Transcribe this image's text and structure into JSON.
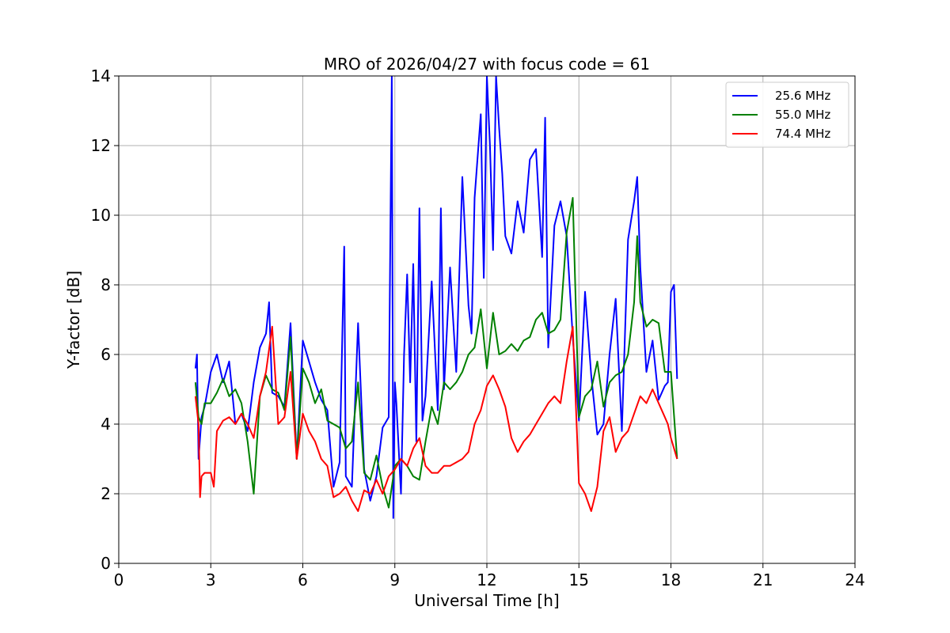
{
  "chart_data": {
    "type": "line",
    "title": "MRO of 2026/04/27 with focus code = 61",
    "xlabel": "Universal Time [h]",
    "ylabel": "Y-factor [dB]",
    "xlim": [
      0,
      24
    ],
    "ylim": [
      0,
      14
    ],
    "xticks": [
      0,
      3,
      6,
      9,
      12,
      15,
      18,
      21,
      24
    ],
    "yticks": [
      0,
      2,
      4,
      6,
      8,
      10,
      12,
      14
    ],
    "grid": true,
    "legend_position": "top-right",
    "series": [
      {
        "name": "25.6 MHz",
        "color": "#0000ff",
        "x": [
          2.5,
          2.55,
          2.6,
          2.7,
          2.8,
          3.0,
          3.2,
          3.4,
          3.6,
          3.8,
          4.0,
          4.2,
          4.4,
          4.6,
          4.8,
          4.9,
          5.0,
          5.2,
          5.4,
          5.6,
          5.8,
          6.0,
          6.2,
          6.4,
          6.6,
          6.8,
          7.0,
          7.2,
          7.35,
          7.4,
          7.6,
          7.8,
          8.0,
          8.2,
          8.4,
          8.6,
          8.8,
          8.9,
          8.95,
          9.0,
          9.05,
          9.2,
          9.3,
          9.4,
          9.5,
          9.6,
          9.7,
          9.8,
          9.9,
          10.0,
          10.2,
          10.4,
          10.5,
          10.6,
          10.8,
          11.0,
          11.2,
          11.4,
          11.5,
          11.6,
          11.8,
          11.9,
          12.0,
          12.1,
          12.2,
          12.3,
          12.4,
          12.5,
          12.6,
          12.8,
          13.0,
          13.2,
          13.4,
          13.6,
          13.8,
          13.9,
          14.0,
          14.2,
          14.4,
          14.6,
          14.8,
          15.0,
          15.2,
          15.4,
          15.6,
          15.8,
          16.0,
          16.2,
          16.4,
          16.6,
          16.8,
          16.9,
          17.0,
          17.2,
          17.4,
          17.6,
          17.8,
          17.9,
          18.0,
          18.1,
          18.2
        ],
        "y": [
          5.6,
          6.0,
          3.0,
          4.2,
          4.5,
          5.5,
          6.0,
          5.2,
          5.8,
          4.0,
          4.3,
          3.8,
          5.2,
          6.2,
          6.6,
          7.5,
          4.9,
          4.8,
          4.5,
          6.9,
          3.0,
          6.4,
          5.8,
          5.2,
          4.7,
          4.4,
          2.2,
          2.9,
          9.1,
          2.5,
          2.2,
          6.9,
          2.7,
          1.8,
          2.5,
          3.9,
          4.2,
          14.0,
          1.3,
          5.2,
          4.6,
          2.0,
          6.0,
          8.3,
          5.2,
          8.6,
          3.5,
          10.2,
          4.1,
          4.8,
          8.1,
          4.4,
          10.2,
          5.0,
          8.5,
          5.5,
          11.1,
          7.4,
          6.6,
          10.5,
          12.9,
          8.2,
          14.0,
          12.0,
          9.0,
          14.0,
          12.5,
          11.2,
          9.4,
          8.9,
          10.4,
          9.5,
          11.6,
          11.9,
          8.8,
          12.8,
          6.2,
          9.7,
          10.4,
          9.4,
          6.5,
          4.1,
          7.8,
          5.4,
          3.7,
          4.0,
          6.0,
          7.6,
          3.8,
          9.3,
          10.4,
          11.1,
          8.5,
          5.5,
          6.4,
          4.7,
          5.1,
          5.2,
          7.8,
          8.0,
          5.3
        ]
      },
      {
        "name": "55.0 MHz",
        "color": "#008000",
        "x": [
          2.5,
          2.6,
          2.7,
          2.8,
          3.0,
          3.2,
          3.4,
          3.6,
          3.8,
          4.0,
          4.2,
          4.4,
          4.6,
          4.8,
          5.0,
          5.2,
          5.4,
          5.6,
          5.8,
          6.0,
          6.2,
          6.4,
          6.6,
          6.8,
          7.0,
          7.2,
          7.4,
          7.6,
          7.8,
          8.0,
          8.2,
          8.4,
          8.6,
          8.8,
          9.0,
          9.2,
          9.4,
          9.6,
          9.8,
          10.0,
          10.2,
          10.4,
          10.6,
          10.8,
          11.0,
          11.2,
          11.4,
          11.6,
          11.8,
          12.0,
          12.2,
          12.4,
          12.6,
          12.8,
          13.0,
          13.2,
          13.4,
          13.6,
          13.8,
          14.0,
          14.2,
          14.4,
          14.6,
          14.8,
          15.0,
          15.2,
          15.4,
          15.6,
          15.8,
          16.0,
          16.2,
          16.4,
          16.6,
          16.8,
          16.9,
          17.0,
          17.2,
          17.4,
          17.6,
          17.8,
          18.0,
          18.2
        ],
        "y": [
          5.2,
          4.2,
          4.0,
          4.6,
          4.6,
          4.9,
          5.3,
          4.8,
          5.0,
          4.6,
          3.5,
          2.0,
          4.8,
          5.4,
          5.0,
          4.9,
          4.4,
          6.5,
          3.0,
          5.6,
          5.2,
          4.6,
          5.0,
          4.1,
          4.0,
          3.9,
          3.3,
          3.5,
          5.2,
          2.6,
          2.4,
          3.1,
          2.2,
          1.6,
          2.8,
          3.0,
          2.8,
          2.5,
          2.4,
          3.5,
          4.5,
          4.0,
          5.2,
          5.0,
          5.2,
          5.5,
          6.0,
          6.2,
          7.3,
          5.6,
          7.2,
          6.0,
          6.1,
          6.3,
          6.1,
          6.4,
          6.5,
          7.0,
          7.2,
          6.6,
          6.7,
          7.0,
          9.5,
          10.5,
          4.2,
          4.8,
          5.0,
          5.8,
          4.5,
          5.2,
          5.4,
          5.5,
          6.0,
          7.5,
          9.4,
          7.5,
          6.8,
          7.0,
          6.9,
          5.5,
          5.5,
          3.0
        ]
      },
      {
        "name": "74.4 MHz",
        "color": "#ff0000",
        "x": [
          2.5,
          2.6,
          2.65,
          2.7,
          2.8,
          3.0,
          3.1,
          3.2,
          3.4,
          3.6,
          3.8,
          4.0,
          4.2,
          4.4,
          4.6,
          4.8,
          5.0,
          5.2,
          5.4,
          5.6,
          5.8,
          6.0,
          6.2,
          6.4,
          6.6,
          6.8,
          7.0,
          7.2,
          7.4,
          7.6,
          7.8,
          8.0,
          8.2,
          8.4,
          8.6,
          8.8,
          9.0,
          9.2,
          9.4,
          9.6,
          9.8,
          10.0,
          10.2,
          10.4,
          10.6,
          10.8,
          11.0,
          11.2,
          11.4,
          11.6,
          11.8,
          12.0,
          12.2,
          12.4,
          12.6,
          12.8,
          13.0,
          13.2,
          13.4,
          13.6,
          13.8,
          14.0,
          14.2,
          14.4,
          14.6,
          14.8,
          15.0,
          15.2,
          15.4,
          15.6,
          15.8,
          16.0,
          16.2,
          16.4,
          16.6,
          16.8,
          17.0,
          17.2,
          17.4,
          17.6,
          17.8,
          17.9,
          18.0,
          18.2
        ],
        "y": [
          4.8,
          4.0,
          1.9,
          2.5,
          2.6,
          2.6,
          2.2,
          3.8,
          4.1,
          4.2,
          4.0,
          4.3,
          4.0,
          3.6,
          4.8,
          5.5,
          6.8,
          4.0,
          4.2,
          5.5,
          3.0,
          4.3,
          3.8,
          3.5,
          3.0,
          2.8,
          1.9,
          2.0,
          2.2,
          1.8,
          1.5,
          2.1,
          2.0,
          2.4,
          2.0,
          2.5,
          2.7,
          3.0,
          2.8,
          3.3,
          3.6,
          2.8,
          2.6,
          2.6,
          2.8,
          2.8,
          2.9,
          3.0,
          3.2,
          4.0,
          4.4,
          5.1,
          5.4,
          5.0,
          4.5,
          3.6,
          3.2,
          3.5,
          3.7,
          4.0,
          4.3,
          4.6,
          4.8,
          4.6,
          5.8,
          6.8,
          2.3,
          2.0,
          1.5,
          2.2,
          3.8,
          4.2,
          3.2,
          3.6,
          3.8,
          4.3,
          4.8,
          4.6,
          5.0,
          4.6,
          4.2,
          4.0,
          3.6,
          3.0
        ]
      }
    ]
  }
}
